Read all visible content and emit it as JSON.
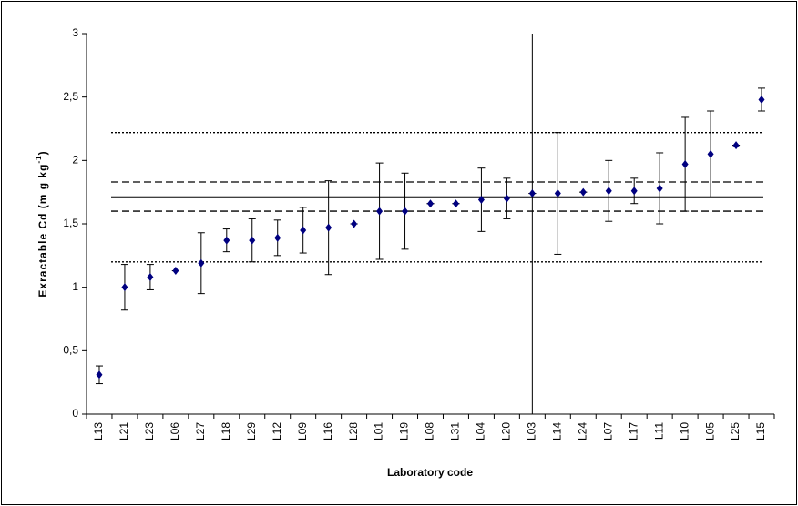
{
  "chart_data": {
    "type": "errorbar",
    "ylabel": "Exractable Cd (m g kg",
    "ylabel_sup": "-1",
    "ylabel_end": ")",
    "xlabel": "Laboratory code",
    "categories": [
      "L13",
      "L21",
      "L23",
      "L06",
      "L27",
      "L18",
      "L29",
      "L12",
      "L09",
      "L16",
      "L28",
      "L01",
      "L19",
      "L08",
      "L31",
      "L04",
      "L20",
      "L03",
      "L14",
      "L24",
      "L07",
      "L17",
      "L11",
      "L10",
      "L05",
      "L25",
      "L15"
    ],
    "values": [
      0.31,
      1.0,
      1.08,
      1.13,
      1.19,
      1.37,
      1.37,
      1.39,
      1.45,
      1.47,
      1.5,
      1.6,
      1.6,
      1.66,
      1.66,
      1.69,
      1.7,
      1.74,
      1.74,
      1.75,
      1.76,
      1.76,
      1.78,
      1.97,
      2.05,
      2.12,
      2.48
    ],
    "errors": [
      0.07,
      0.18,
      0.1,
      0,
      0.24,
      0.09,
      0.17,
      0.14,
      0.18,
      0.37,
      0,
      0.38,
      0.3,
      0,
      0,
      0.25,
      0.16,
      0,
      0.48,
      0,
      0.24,
      0.1,
      0.28,
      0.37,
      0.34,
      0,
      0.09
    ],
    "color": "#000080",
    "ylim": [
      0,
      3
    ],
    "yticks": [
      0,
      {
        "value": 0.5,
        "label": "0,5"
      },
      1,
      {
        "value": 1.5,
        "label": "1,5"
      },
      2,
      {
        "value": 2.5,
        "label": "2,5"
      },
      3
    ],
    "reference_lines": [
      {
        "value": 1.71,
        "style": "solid"
      },
      {
        "value": 1.83,
        "style": "dashed"
      },
      {
        "value": 1.6,
        "style": "dashed"
      },
      {
        "value": 2.22,
        "style": "dotted"
      },
      {
        "value": 1.2,
        "style": "dotted"
      }
    ],
    "vline_category": "L03"
  }
}
